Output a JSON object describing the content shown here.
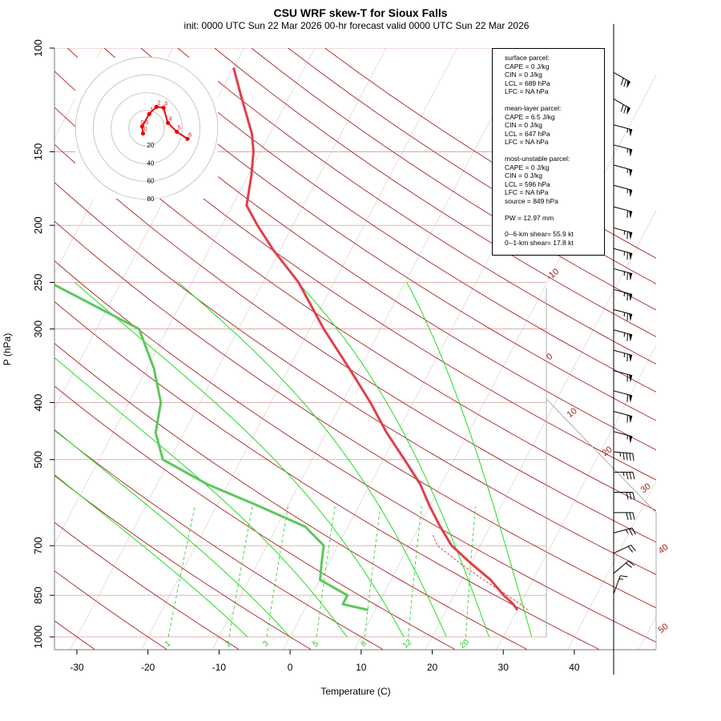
{
  "title": "CSU WRF skew-T for Sioux Falls",
  "subtitle": "init: 0000 UTC Sun 22 Mar 2026     00-hr forecast valid 0000 UTC Sun 22 Mar 2026",
  "info_box": {
    "blocks": [
      [
        "surface parcel:",
        "CAPE = 0 J/kg",
        "CIN = 0 J/kg",
        "LCL = 689 hPa",
        "LFC = NA hPa"
      ],
      [
        "mean-layer parcel:",
        "CAPE = 6.5 J/kg",
        "CIN = 0 J/kg",
        "LCL = 647 hPa",
        "LFC = NA hPa"
      ],
      [
        "most-unstable parcel:",
        "CAPE = 0 J/kg",
        "CIN = 0 J/kg",
        "LCL = 596 hPa",
        "LFC = NA hPa",
        "source = 849 hPa"
      ],
      [
        "PW =  12.97 mm"
      ],
      [
        "0--6-km shear= 55.9 kt",
        "0--1-km shear= 17.8 kt"
      ]
    ]
  },
  "colors": {
    "temperature": "#e0404a",
    "dewpoint": "#5cc85c",
    "isotherm": "#aa2222",
    "pressure_line": "#d99a9a",
    "mixing_ratio": "#22cc22",
    "moist_adiabat": "#22dd22",
    "hodograph": "#ee0000",
    "parcel": "#d05050"
  },
  "chart_data": {
    "type": "skew-t",
    "xlabel": "Temperature (C)",
    "ylabel": "P (hPa)",
    "xlim": [
      -33,
      43
    ],
    "ylim": [
      1000,
      100
    ],
    "y_scale": "log",
    "x_ticks": [
      -30,
      -20,
      -10,
      0,
      10,
      20,
      30,
      40
    ],
    "y_ticks": [
      100,
      150,
      200,
      250,
      300,
      400,
      500,
      700,
      850,
      1000
    ],
    "isotherm_labels": [
      "-10",
      "0",
      "10",
      "20",
      "30",
      "40",
      "50"
    ],
    "mixing_ratio_labels": [
      "1",
      "2",
      "3",
      "5",
      "8",
      "12",
      "20"
    ],
    "temperature_profile": [
      {
        "p": 900,
        "t": 30.0
      },
      {
        "p": 880,
        "t": 29.0
      },
      {
        "p": 850,
        "t": 27.0
      },
      {
        "p": 800,
        "t": 24.0
      },
      {
        "p": 750,
        "t": 20.0
      },
      {
        "p": 700,
        "t": 16.0
      },
      {
        "p": 650,
        "t": 13.0
      },
      {
        "p": 600,
        "t": 10.0
      },
      {
        "p": 550,
        "t": 7.0
      },
      {
        "p": 500,
        "t": 3.0
      },
      {
        "p": 450,
        "t": -1.5
      },
      {
        "p": 400,
        "t": -6.0
      },
      {
        "p": 350,
        "t": -11.5
      },
      {
        "p": 300,
        "t": -18.0
      },
      {
        "p": 250,
        "t": -25.0
      },
      {
        "p": 220,
        "t": -31.0
      },
      {
        "p": 200,
        "t": -35.0
      },
      {
        "p": 185,
        "t": -38.0
      },
      {
        "p": 165,
        "t": -39.5
      },
      {
        "p": 150,
        "t": -41.0
      },
      {
        "p": 140,
        "t": -42.5
      },
      {
        "p": 120,
        "t": -47.0
      },
      {
        "p": 108,
        "t": -50.0
      }
    ],
    "dewpoint_profile": [
      {
        "p": 900,
        "t": 9.0
      },
      {
        "p": 880,
        "t": 5.0
      },
      {
        "p": 850,
        "t": 5.0
      },
      {
        "p": 800,
        "t": 0.0
      },
      {
        "p": 750,
        "t": -1.0
      },
      {
        "p": 700,
        "t": -2.0
      },
      {
        "p": 650,
        "t": -6.0
      },
      {
        "p": 600,
        "t": -14.0
      },
      {
        "p": 550,
        "t": -23.0
      },
      {
        "p": 500,
        "t": -31.0
      },
      {
        "p": 450,
        "t": -34.0
      },
      {
        "p": 400,
        "t": -35.5
      },
      {
        "p": 350,
        "t": -39.0
      },
      {
        "p": 300,
        "t": -44.0
      },
      {
        "p": 250,
        "t": -60.0
      },
      {
        "p": 220,
        "t": -66.0
      },
      {
        "p": 200,
        "t": -72.0
      },
      {
        "p": 180,
        "t": -80.0
      }
    ],
    "parcel_profile": [
      {
        "p": 900,
        "t": 31.5
      },
      {
        "p": 880,
        "t": 30.0
      },
      {
        "p": 850,
        "t": 27.5
      },
      {
        "p": 800,
        "t": 23.0
      },
      {
        "p": 750,
        "t": 18.5
      },
      {
        "p": 700,
        "t": 14.0
      },
      {
        "p": 670,
        "t": 12.5
      }
    ],
    "hodograph": {
      "ring_labels": [
        "20",
        "40",
        "60",
        "80"
      ],
      "points": [
        {
          "label": "0",
          "u": -2,
          "v": -3
        },
        {
          "label": "0.5",
          "u": -2.5,
          "v": 1.0
        },
        {
          "label": "1",
          "u": 1.5,
          "v": 8.0
        },
        {
          "label": "2",
          "u": 5.5,
          "v": 12.0
        },
        {
          "label": "3",
          "u": 9.5,
          "v": 11.5
        },
        {
          "label": "4",
          "u": 12,
          "v": 3
        },
        {
          "label": "5",
          "u": 17,
          "v": -2
        },
        {
          "label": "6",
          "u": 23,
          "v": -6
        }
      ]
    },
    "wind_barbs": [
      {
        "p": 110,
        "kt": 70,
        "dir": 300
      },
      {
        "p": 122,
        "kt": 70,
        "dir": 300
      },
      {
        "p": 135,
        "kt": 55,
        "dir": 285
      },
      {
        "p": 146,
        "kt": 55,
        "dir": 285
      },
      {
        "p": 158,
        "kt": 55,
        "dir": 285
      },
      {
        "p": 171,
        "kt": 55,
        "dir": 285
      },
      {
        "p": 186,
        "kt": 60,
        "dir": 285
      },
      {
        "p": 202,
        "kt": 65,
        "dir": 285
      },
      {
        "p": 219,
        "kt": 65,
        "dir": 285
      },
      {
        "p": 237,
        "kt": 65,
        "dir": 285
      },
      {
        "p": 257,
        "kt": 65,
        "dir": 285
      },
      {
        "p": 278,
        "kt": 65,
        "dir": 285
      },
      {
        "p": 301,
        "kt": 65,
        "dir": 285
      },
      {
        "p": 326,
        "kt": 65,
        "dir": 285
      },
      {
        "p": 353,
        "kt": 60,
        "dir": 285
      },
      {
        "p": 382,
        "kt": 60,
        "dir": 285
      },
      {
        "p": 414,
        "kt": 60,
        "dir": 285
      },
      {
        "p": 448,
        "kt": 55,
        "dir": 285
      },
      {
        "p": 485,
        "kt": 45,
        "dir": 275
      },
      {
        "p": 525,
        "kt": 35,
        "dir": 270
      },
      {
        "p": 568,
        "kt": 30,
        "dir": 270
      },
      {
        "p": 615,
        "kt": 30,
        "dir": 270
      },
      {
        "p": 666,
        "kt": 25,
        "dir": 255
      },
      {
        "p": 721,
        "kt": 20,
        "dir": 245
      },
      {
        "p": 780,
        "kt": 20,
        "dir": 230
      },
      {
        "p": 845,
        "kt": 15,
        "dir": 200
      }
    ]
  }
}
